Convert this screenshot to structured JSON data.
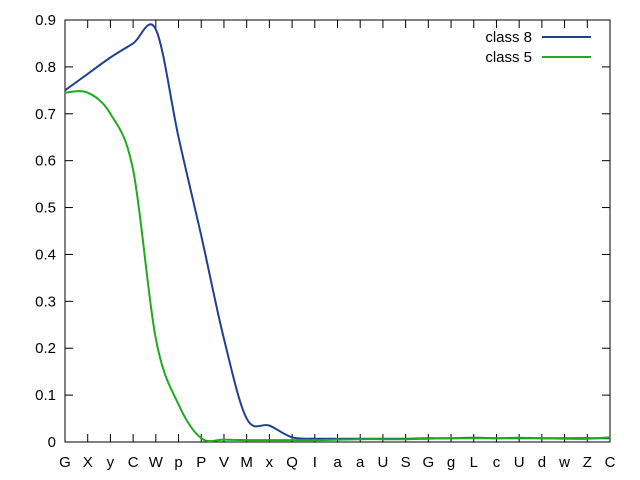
{
  "chart_data": {
    "type": "line",
    "title": "",
    "xlabel": "",
    "ylabel": "",
    "categories": [
      "G",
      "X",
      "y",
      "C",
      "W",
      "p",
      "P",
      "V",
      "M",
      "x",
      "Q",
      "I",
      "a",
      "a",
      "U",
      "S",
      "G",
      "g",
      "L",
      "c",
      "U",
      "d",
      "w",
      "Z",
      "C"
    ],
    "ylim": [
      0,
      0.9
    ],
    "yticks": [
      "0",
      "0.1",
      "0.2",
      "0.3",
      "0.4",
      "0.5",
      "0.6",
      "0.7",
      "0.8",
      "0.9"
    ],
    "grid": false,
    "legend_position": "top-right",
    "series": [
      {
        "name": "class 8",
        "color": "#1f3f8f",
        "values": [
          0.75,
          0.785,
          0.82,
          0.85,
          0.88,
          0.65,
          0.44,
          0.22,
          0.05,
          0.035,
          0.01,
          0.007,
          0.007,
          0.007,
          0.007,
          0.007,
          0.008,
          0.008,
          0.009,
          0.008,
          0.008,
          0.008,
          0.008,
          0.008,
          0.008
        ]
      },
      {
        "name": "class 5",
        "color": "#1faa1f",
        "values": [
          0.745,
          0.745,
          0.7,
          0.58,
          0.22,
          0.08,
          0.008,
          0.005,
          0.004,
          0.004,
          0.004,
          0.004,
          0.005,
          0.006,
          0.006,
          0.006,
          0.007,
          0.008,
          0.008,
          0.008,
          0.009,
          0.008,
          0.007,
          0.007,
          0.01
        ]
      }
    ]
  }
}
